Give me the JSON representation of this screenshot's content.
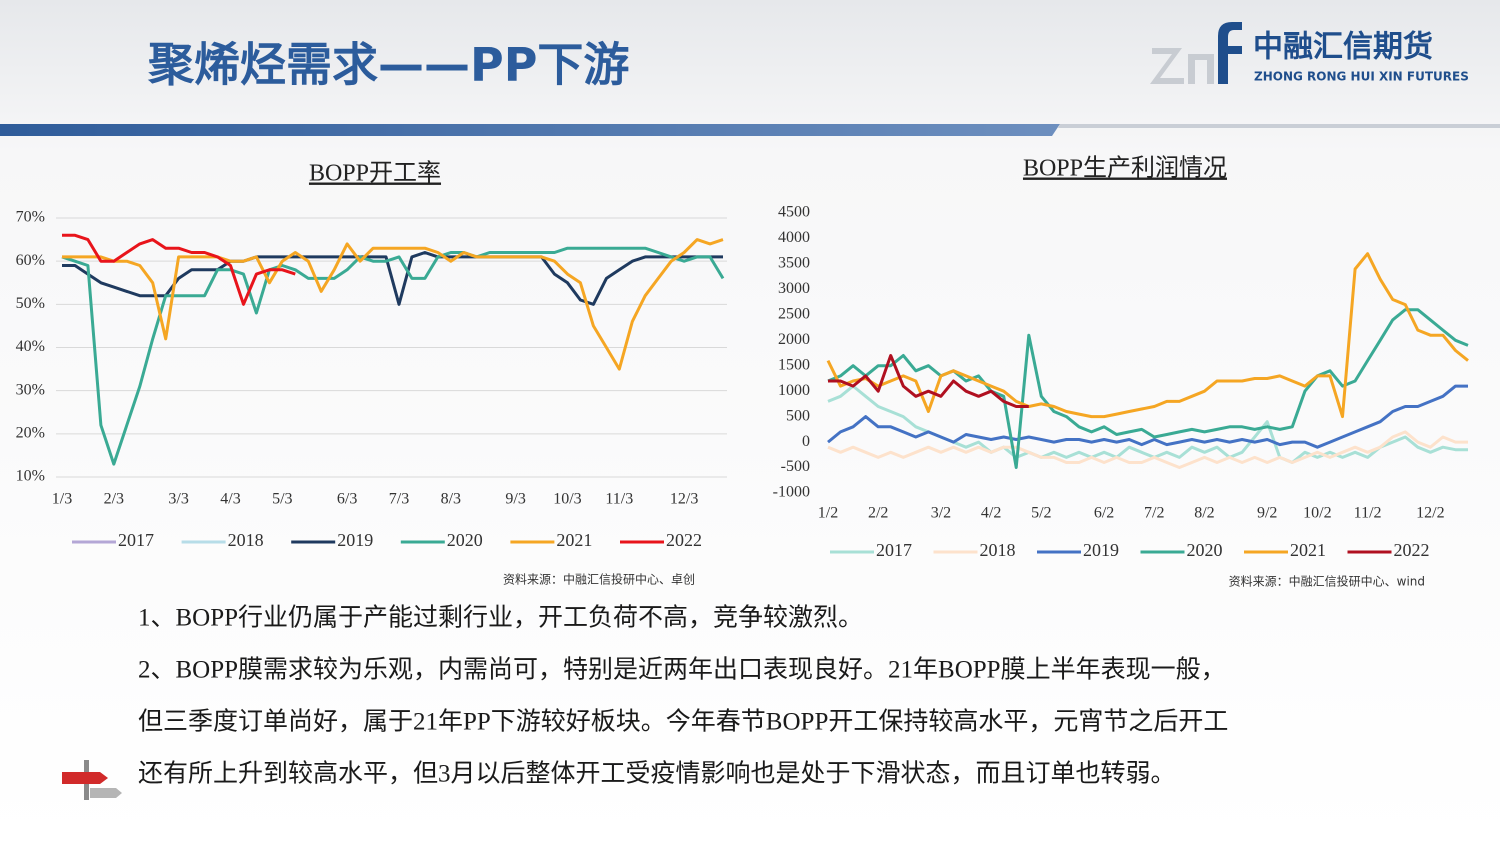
{
  "header": {
    "title": "聚烯烃需求——PP下游",
    "logo_cn": "中融汇信期货",
    "logo_en": "ZHONG RONG HUI XIN FUTURES"
  },
  "chart_data": [
    {
      "type": "line",
      "title": "BOPP开工率",
      "source": "资料来源：中融汇信投研中心、卓创",
      "categories": [
        "1/3",
        null,
        null,
        null,
        "2/3",
        null,
        null,
        null,
        null,
        "3/3",
        null,
        null,
        null,
        "4/3",
        null,
        null,
        null,
        "5/3",
        null,
        null,
        null,
        null,
        "6/3",
        null,
        null,
        null,
        "7/3",
        null,
        null,
        null,
        "8/3",
        null,
        null,
        null,
        null,
        "9/3",
        null,
        null,
        null,
        "10/3",
        null,
        null,
        null,
        "11/3",
        null,
        null,
        null,
        null,
        "12/3",
        null,
        null,
        null
      ],
      "ylim": [
        10,
        70
      ],
      "yticks": [
        {
          "value": 10,
          "label": "10%"
        },
        {
          "value": 20,
          "label": "20%"
        },
        {
          "value": 30,
          "label": "30%"
        },
        {
          "value": 40,
          "label": "40%"
        },
        {
          "value": 50,
          "label": "50%"
        },
        {
          "value": 60,
          "label": "60%"
        },
        {
          "value": 70,
          "label": "70%"
        }
      ],
      "grid": true,
      "legend": "bottom",
      "series": [
        {
          "name": "2017",
          "color": "#b4a7d6",
          "values": [
            null,
            null,
            null,
            null,
            null,
            null,
            null,
            null,
            null,
            null,
            null,
            null,
            null,
            null,
            null,
            null,
            null,
            null,
            null,
            null,
            null,
            null,
            null,
            null,
            null,
            null,
            null,
            null,
            null,
            null,
            null,
            null,
            null,
            null,
            null,
            null,
            null,
            null,
            null,
            null,
            null,
            null,
            null,
            null,
            null,
            null,
            null,
            null,
            null,
            null,
            null,
            null
          ]
        },
        {
          "name": "2018",
          "color": "#b7dde8",
          "values": [
            null,
            null,
            null,
            null,
            null,
            null,
            null,
            null,
            null,
            null,
            null,
            null,
            null,
            null,
            null,
            null,
            null,
            null,
            null,
            null,
            null,
            null,
            null,
            null,
            null,
            null,
            null,
            null,
            null,
            null,
            null,
            null,
            null,
            null,
            null,
            null,
            null,
            null,
            null,
            null,
            null,
            null,
            null,
            null,
            null,
            null,
            null,
            null,
            null,
            null,
            null,
            null
          ]
        },
        {
          "name": "2019",
          "color": "#1f3a5f",
          "values": [
            59,
            59,
            57,
            55,
            54,
            53,
            52,
            52,
            52,
            56,
            58,
            58,
            58,
            60,
            60,
            61,
            61,
            61,
            61,
            61,
            61,
            61,
            61,
            61,
            61,
            61,
            50,
            61,
            62,
            61,
            61,
            61,
            61,
            61,
            61,
            61,
            61,
            61,
            57,
            55,
            51,
            50,
            56,
            58,
            60,
            61,
            61,
            61,
            61,
            61,
            61,
            61
          ]
        },
        {
          "name": "2020",
          "color": "#3aaa94",
          "values": [
            61,
            60,
            59,
            22,
            13,
            22,
            31,
            42,
            52,
            52,
            52,
            52,
            58,
            58,
            57,
            48,
            58,
            59,
            58,
            56,
            56,
            56,
            58,
            61,
            60,
            60,
            61,
            56,
            56,
            61,
            62,
            62,
            61,
            62,
            62,
            62,
            62,
            62,
            62,
            63,
            63,
            63,
            63,
            63,
            63,
            63,
            62,
            61,
            60,
            61,
            61,
            56
          ]
        },
        {
          "name": "2021",
          "color": "#f5a623",
          "values": [
            61,
            61,
            61,
            61,
            60,
            60,
            59,
            55,
            42,
            61,
            61,
            61,
            61,
            60,
            60,
            61,
            55,
            60,
            62,
            60,
            53,
            58,
            64,
            60,
            63,
            63,
            63,
            63,
            63,
            62,
            60,
            62,
            61,
            61,
            61,
            61,
            61,
            61,
            60,
            57,
            55,
            45,
            40,
            35,
            46,
            52,
            56,
            60,
            62,
            65,
            64,
            65
          ]
        },
        {
          "name": "2022",
          "color": "#e8141b",
          "values": [
            66,
            66,
            65,
            60,
            60,
            62,
            64,
            65,
            63,
            63,
            62,
            62,
            61,
            59,
            50,
            57,
            58,
            58,
            57,
            null,
            null,
            null,
            null,
            null,
            null,
            null,
            null,
            null,
            null,
            null,
            null,
            null,
            null,
            null,
            null,
            null,
            null,
            null,
            null,
            null,
            null,
            null,
            null,
            null,
            null,
            null,
            null,
            null,
            null,
            null,
            null,
            null
          ]
        }
      ]
    },
    {
      "type": "line",
      "title": "BOPP生产利润情况",
      "source": "资料来源：中融汇信投研中心、wind",
      "categories": [
        "1/2",
        null,
        null,
        null,
        "2/2",
        null,
        null,
        null,
        null,
        "3/2",
        null,
        null,
        null,
        "4/2",
        null,
        null,
        null,
        "5/2",
        null,
        null,
        null,
        null,
        "6/2",
        null,
        null,
        null,
        "7/2",
        null,
        null,
        null,
        "8/2",
        null,
        null,
        null,
        null,
        "9/2",
        null,
        null,
        null,
        "10/2",
        null,
        null,
        null,
        "11/2",
        null,
        null,
        null,
        null,
        "12/2",
        null,
        null,
        null
      ],
      "ylim": [
        -1000,
        4500
      ],
      "yticks": [
        -1000,
        -500,
        0,
        500,
        1000,
        1500,
        2000,
        2500,
        3000,
        3500,
        4000,
        4500
      ],
      "grid": false,
      "legend": "bottom",
      "series": [
        {
          "name": "2017",
          "color": "#a8e0d6",
          "values": [
            800,
            900,
            1100,
            900,
            700,
            600,
            500,
            300,
            200,
            100,
            0,
            -100,
            0,
            -200,
            -100,
            -300,
            -200,
            -300,
            -200,
            -300,
            -200,
            -300,
            -200,
            -300,
            -100,
            -200,
            -300,
            -200,
            -300,
            -100,
            -200,
            -100,
            -300,
            -200,
            100,
            400,
            -300,
            -400,
            -200,
            -300,
            -200,
            -300,
            -200,
            -300,
            -100,
            0,
            100,
            -100,
            -200,
            -100,
            -150,
            -150
          ]
        },
        {
          "name": "2018",
          "color": "#fde2cc",
          "values": [
            -100,
            -200,
            -100,
            -200,
            -300,
            -200,
            -300,
            -200,
            -100,
            -200,
            -100,
            -200,
            -100,
            -200,
            -100,
            -100,
            -200,
            -300,
            -300,
            -400,
            -400,
            -300,
            -400,
            -300,
            -400,
            -400,
            -300,
            -400,
            -500,
            -400,
            -300,
            -400,
            -300,
            -400,
            -300,
            -400,
            -300,
            -400,
            -300,
            -200,
            -300,
            -200,
            -100,
            -200,
            -100,
            100,
            200,
            0,
            -100,
            100,
            0,
            0
          ]
        },
        {
          "name": "2019",
          "color": "#4472c4",
          "values": [
            0,
            200,
            300,
            500,
            300,
            300,
            200,
            100,
            200,
            100,
            0,
            150,
            100,
            50,
            100,
            50,
            100,
            50,
            0,
            50,
            50,
            0,
            50,
            0,
            50,
            -50,
            50,
            -50,
            0,
            50,
            0,
            50,
            0,
            50,
            0,
            50,
            -50,
            0,
            0,
            -100,
            0,
            100,
            200,
            300,
            400,
            600,
            700,
            700,
            800,
            900,
            1100,
            1100
          ]
        },
        {
          "name": "2020",
          "color": "#3aaa94",
          "values": [
            1200,
            1300,
            1500,
            1300,
            1500,
            1500,
            1700,
            1400,
            1500,
            1300,
            1400,
            1200,
            1300,
            1000,
            900,
            -500,
            2100,
            900,
            600,
            500,
            300,
            200,
            300,
            150,
            200,
            250,
            100,
            150,
            200,
            250,
            200,
            250,
            300,
            300,
            250,
            300,
            250,
            300,
            1000,
            1300,
            1400,
            1100,
            1200,
            1600,
            2000,
            2400,
            2600,
            2600,
            2400,
            2200,
            2000,
            1900
          ]
        },
        {
          "name": "2021",
          "color": "#f5a623",
          "values": [
            1600,
            1100,
            1200,
            1250,
            1100,
            1200,
            1300,
            1200,
            600,
            1300,
            1400,
            1300,
            1200,
            1100,
            1000,
            800,
            700,
            750,
            700,
            600,
            550,
            500,
            500,
            550,
            600,
            650,
            700,
            800,
            800,
            900,
            1000,
            1200,
            1200,
            1200,
            1250,
            1250,
            1300,
            1200,
            1100,
            1300,
            1300,
            500,
            3400,
            3700,
            3200,
            2800,
            2700,
            2200,
            2100,
            2100,
            1800,
            1600
          ]
        },
        {
          "name": "2022",
          "color": "#b01020",
          "values": [
            1200,
            1200,
            1100,
            1300,
            1000,
            1700,
            1100,
            900,
            1000,
            900,
            1200,
            1000,
            900,
            1000,
            800,
            700,
            700,
            null,
            null,
            null,
            null,
            null,
            null,
            null,
            null,
            null,
            null,
            null,
            null,
            null,
            null,
            null,
            null,
            null,
            null,
            null,
            null,
            null,
            null,
            null,
            null,
            null,
            null,
            null,
            null,
            null,
            null,
            null,
            null,
            null,
            null,
            null
          ]
        }
      ]
    }
  ],
  "body_lines": [
    "1、BOPP行业仍属于产能过剩行业，开工负荷不高，竞争较激烈。",
    "2、BOPP膜需求较为乐观，内需尚可，特别是近两年出口表现良好。21年BOPP膜上半年表现一般，",
    "但三季度订单尚好，属于21年PP下游较好板块。今年春节BOPP开工保持较高水平，元宵节之后开工",
    "还有所上升到较高水平，但3月以后整体开工受疫情影响也是处于下滑状态，而且订单也转弱。"
  ]
}
